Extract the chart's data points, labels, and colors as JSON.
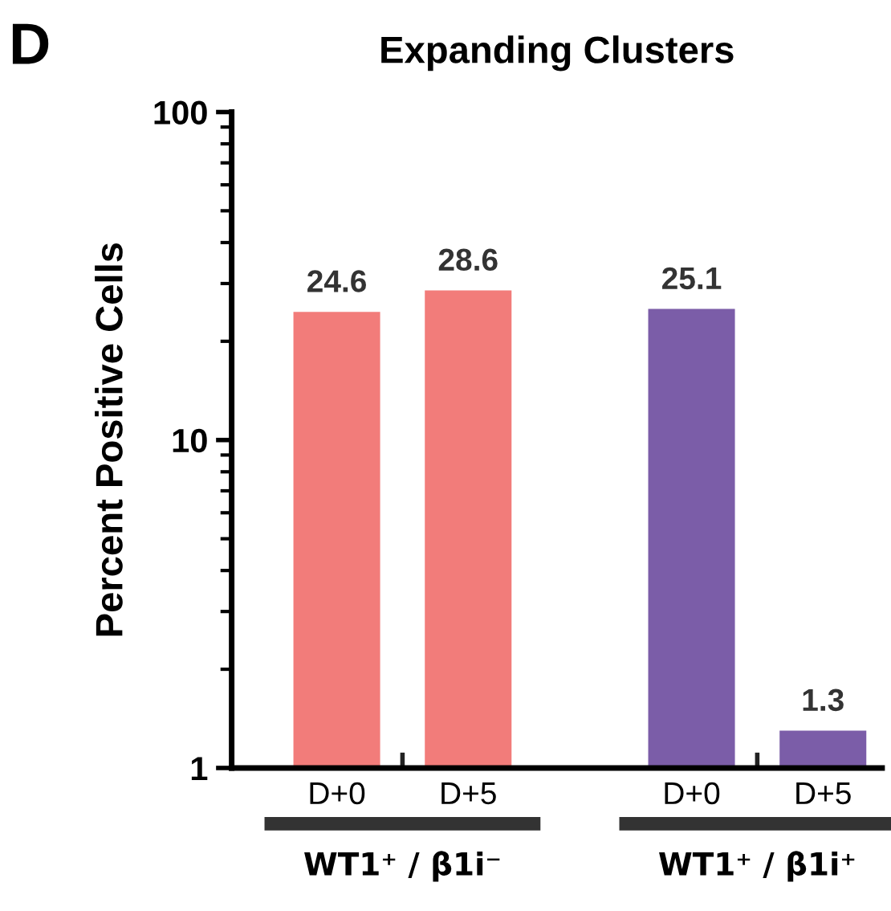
{
  "chart_data": {
    "type": "bar",
    "title": "Expanding Clusters",
    "ylabel": "Percent Positive Cells",
    "categories": [
      "D+0",
      "D+5",
      "D+0",
      "D+5"
    ],
    "values": [
      24.6,
      28.6,
      25.1,
      1.3
    ],
    "colors": [
      "#f27c7a",
      "#f27c7a",
      "#7b5da8",
      "#7b5da8"
    ],
    "log": "y",
    "ylim": [
      1,
      100
    ],
    "yticks": [
      1,
      10,
      100
    ],
    "grid": false,
    "data_labels": true,
    "annotations": [
      "D",
      "WT1⁺ / β1i⁻",
      "WT1⁺ / β1i⁺"
    ]
  }
}
